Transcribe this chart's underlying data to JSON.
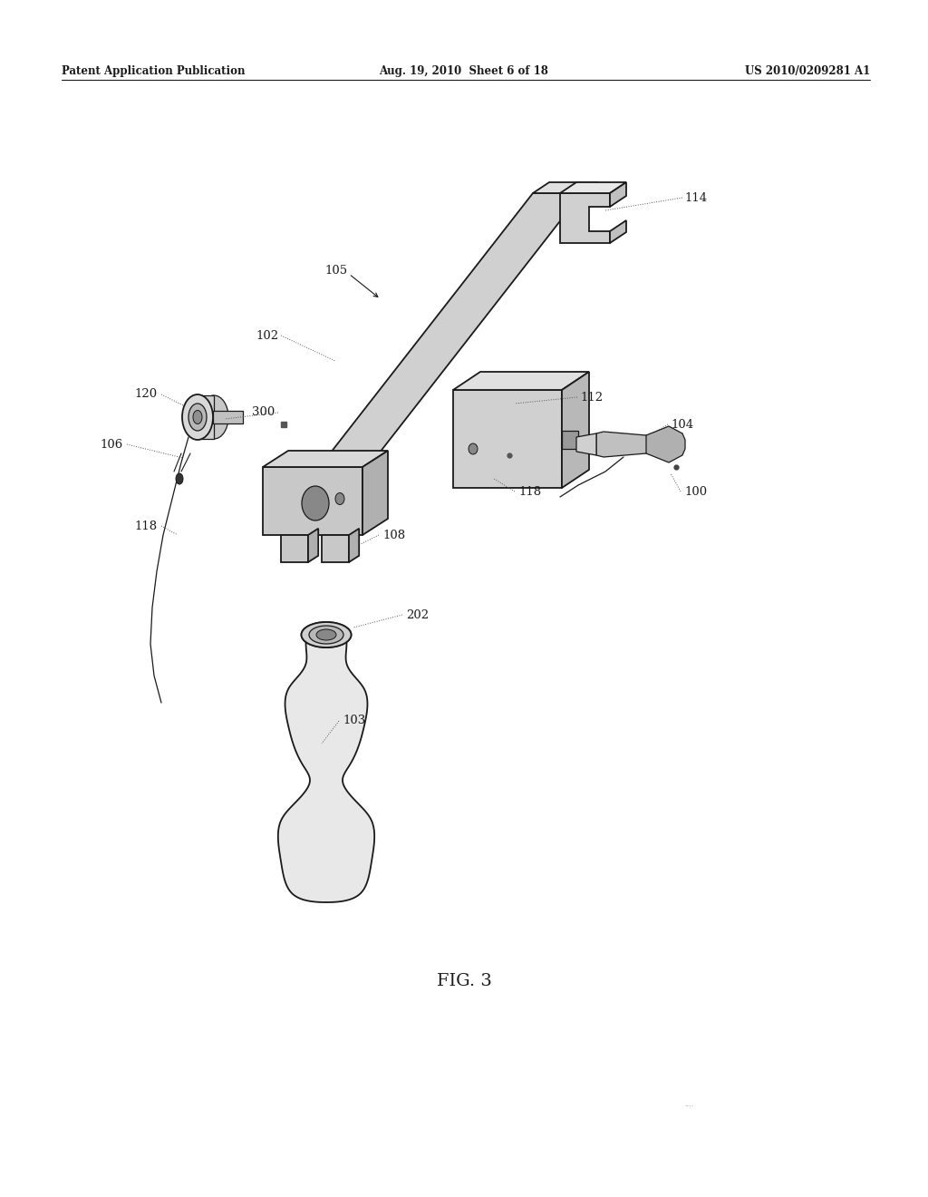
{
  "header_left": "Patent Application Publication",
  "header_mid": "Aug. 19, 2010  Sheet 6 of 18",
  "header_right": "US 2010/0209281 A1",
  "figure_label": "FIG. 3",
  "bg_color": "#ffffff",
  "line_color": "#1a1a1a",
  "gray_light": "#e8e8e8",
  "gray_mid": "#c8c8c8",
  "gray_dark": "#909090",
  "gray_darker": "#707070"
}
